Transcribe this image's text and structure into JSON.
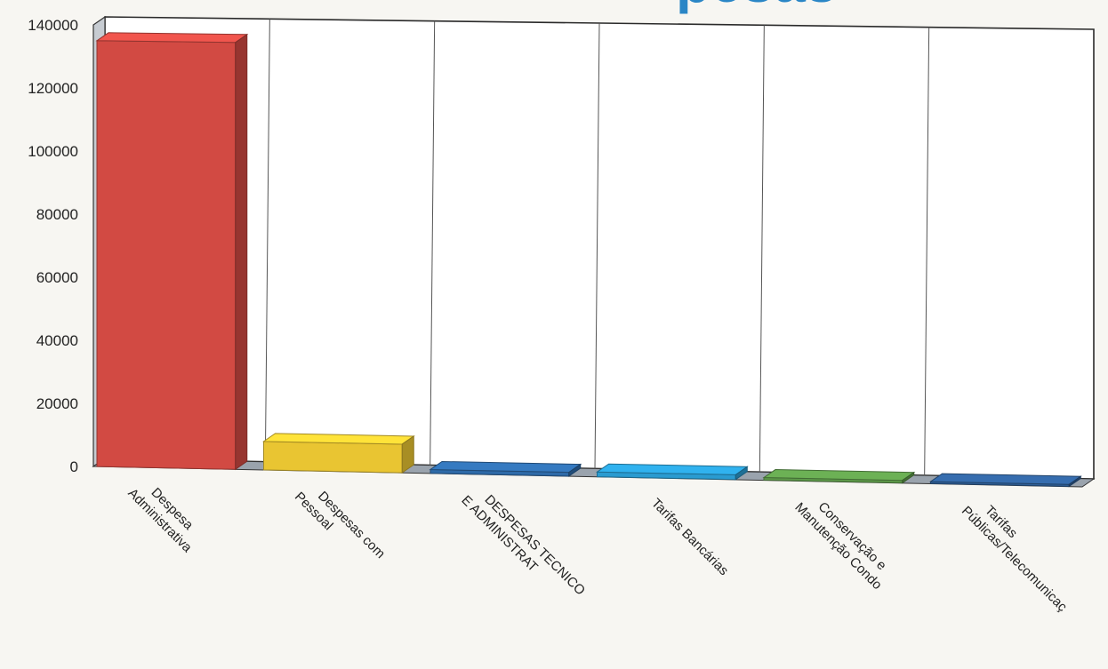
{
  "title_fragment": "pesas",
  "chart_data": {
    "type": "bar",
    "title": "",
    "xlabel": "",
    "ylabel": "",
    "ylim": [
      0,
      140000
    ],
    "y_ticks": [
      "0",
      "20000",
      "40000",
      "60000",
      "80000",
      "100000",
      "120000",
      "140000"
    ],
    "grid": "vertical category dividers",
    "categories": [
      [
        "Despesa",
        "Administrativa"
      ],
      [
        "Despesas com",
        "Pessoal"
      ],
      [
        "DESPESAS TECNICO",
        "E ADMINISTRAT"
      ],
      [
        "Tarifas Bancárias"
      ],
      [
        "Conservação e",
        "Manutenção Condo"
      ],
      [
        "Tarifas",
        "Públicas/Telecomunicaç"
      ]
    ],
    "values": [
      135000,
      9000,
      1200,
      1500,
      800,
      600
    ],
    "colors": [
      "#d24a43",
      "#e9c532",
      "#2e6aa8",
      "#2a9bd0",
      "#5e9a4a",
      "#2f5f98"
    ]
  }
}
